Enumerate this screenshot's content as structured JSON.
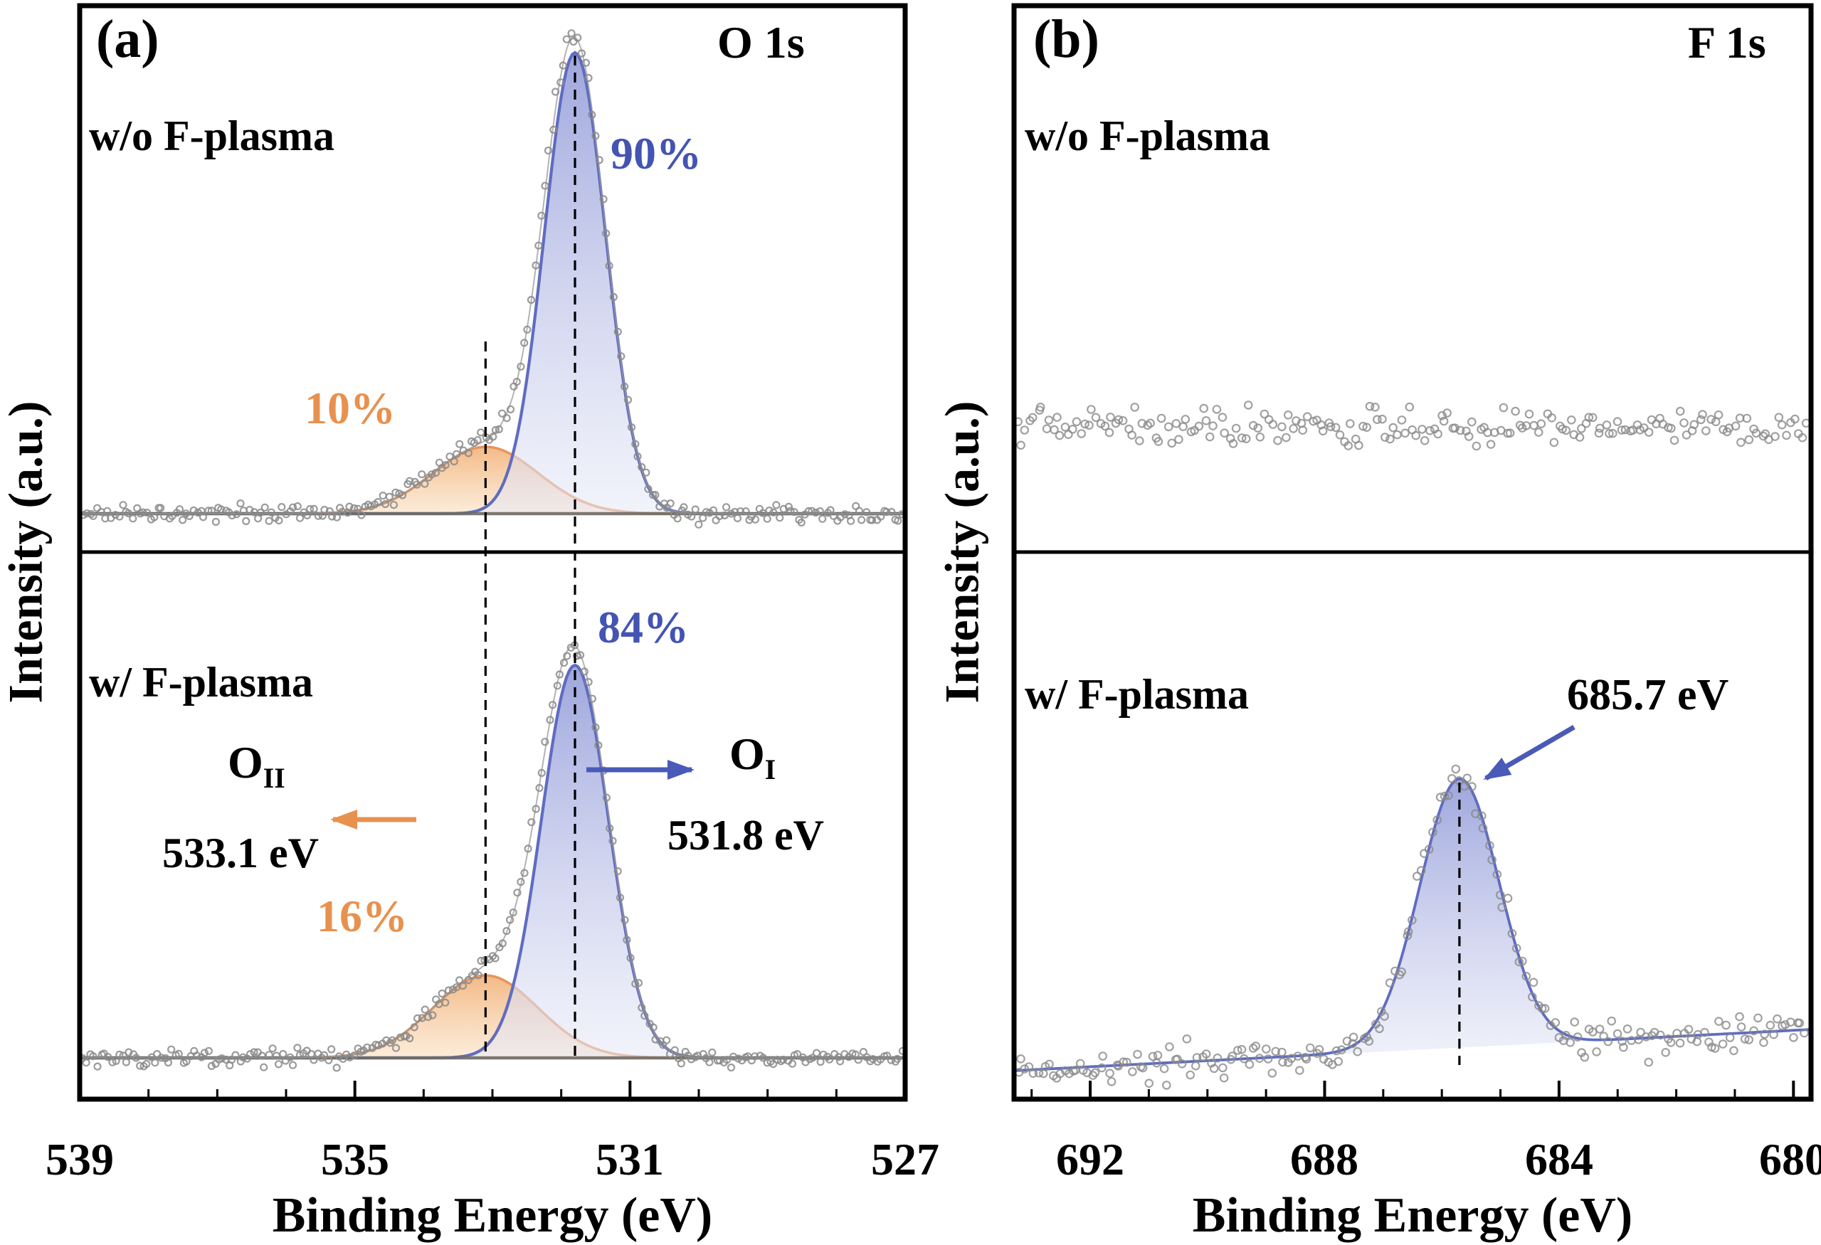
{
  "figure": {
    "description": "Two-panel XPS spectra figure",
    "colors": {
      "component_blue": "#5f6cc0",
      "component_blue_fill": "#b7bde8",
      "component_orange": "#e8945c",
      "component_orange_fill": "#f6cfa6",
      "raw_data_gray": "#8a8a8a",
      "baseline_gray": "#6f6b63",
      "annotation_blue": "#4a5ab8",
      "annotation_orange": "#e8914f",
      "axis_black": "#000000"
    }
  },
  "chart_data": [
    {
      "type": "line",
      "panel": "(a)",
      "element": "O 1s",
      "xlabel": "Binding Energy (eV)",
      "ylabel": "Intensity (a.u.)",
      "x_axis_range": [
        539,
        527
      ],
      "x_axis_reversed": true,
      "x_ticks": [
        539,
        535,
        531,
        527
      ],
      "grid": false,
      "dashed_guides_eV": [
        533.1,
        531.8
      ],
      "subpanels": [
        {
          "condition": "w/o F-plasma",
          "series": [
            {
              "name": "O_I component",
              "curve": "gaussian",
              "center_eV": 531.8,
              "fwhm_eV": 1.05,
              "rel_amplitude": 1.0,
              "area_share": "90%",
              "color": "#5f6cc0",
              "fill": "#b7bde8"
            },
            {
              "name": "O_II component",
              "curve": "gaussian",
              "center_eV": 533.1,
              "fwhm_eV": 1.8,
              "rel_amplitude": 0.145,
              "area_share": "10%",
              "color": "#e8945c",
              "fill": "#f6cfa6"
            },
            {
              "name": "raw data envelope",
              "curve": "scatter-envelope",
              "color": "#8a8a8a"
            },
            {
              "name": "baseline",
              "curve": "flat",
              "color": "#6f6b63"
            }
          ]
        },
        {
          "condition": "w/ F-plasma",
          "series": [
            {
              "name": "O_I component",
              "curve": "gaussian",
              "center_eV": 531.8,
              "fwhm_eV": 1.15,
              "rel_amplitude": 1.0,
              "area_share": "84%",
              "color": "#5f6cc0",
              "fill": "#b7bde8"
            },
            {
              "name": "O_II component",
              "curve": "gaussian",
              "center_eV": 533.1,
              "fwhm_eV": 1.8,
              "rel_amplitude": 0.21,
              "area_share": "16%",
              "color": "#e8945c",
              "fill": "#f6cfa6"
            },
            {
              "name": "raw data envelope",
              "curve": "scatter-envelope",
              "color": "#8a8a8a"
            },
            {
              "name": "baseline",
              "curve": "flat",
              "color": "#6f6b63"
            }
          ],
          "peak_labels": [
            {
              "species": "O",
              "species_sub": "I",
              "energy": "531.8 eV",
              "arrow": "right",
              "color": "#4a5ab8"
            },
            {
              "species": "O",
              "species_sub": "II",
              "energy": "533.1 eV",
              "arrow": "left",
              "color": "#e8914f"
            }
          ]
        }
      ]
    },
    {
      "type": "line",
      "panel": "(b)",
      "element": "F 1s",
      "xlabel": "Binding Energy (eV)",
      "ylabel": "Intensity (a.u.)",
      "x_axis_range": [
        693.3,
        679.7
      ],
      "x_axis_reversed": true,
      "x_ticks": [
        692,
        688,
        684,
        680
      ],
      "grid": false,
      "dashed_guides_eV": [
        685.7
      ],
      "subpanels": [
        {
          "condition": "w/o F-plasma",
          "series": [
            {
              "name": "raw data (no F signal, flat noise)",
              "curve": "scatter-flat",
              "color": "#8a8a8a"
            }
          ]
        },
        {
          "condition": "w/ F-plasma",
          "series": [
            {
              "name": "F 1s peak",
              "curve": "gaussian",
              "center_eV": 685.7,
              "fwhm_eV": 1.6,
              "rel_amplitude": 1.0,
              "annotation": "685.7 eV",
              "color": "#5f6cc0",
              "fill": "#b7bde8"
            },
            {
              "name": "raw data envelope",
              "curve": "scatter-envelope",
              "color": "#8a8a8a"
            },
            {
              "name": "sloped background",
              "curve": "sloped-linear",
              "color": "#5f6cc0"
            }
          ]
        }
      ]
    }
  ]
}
